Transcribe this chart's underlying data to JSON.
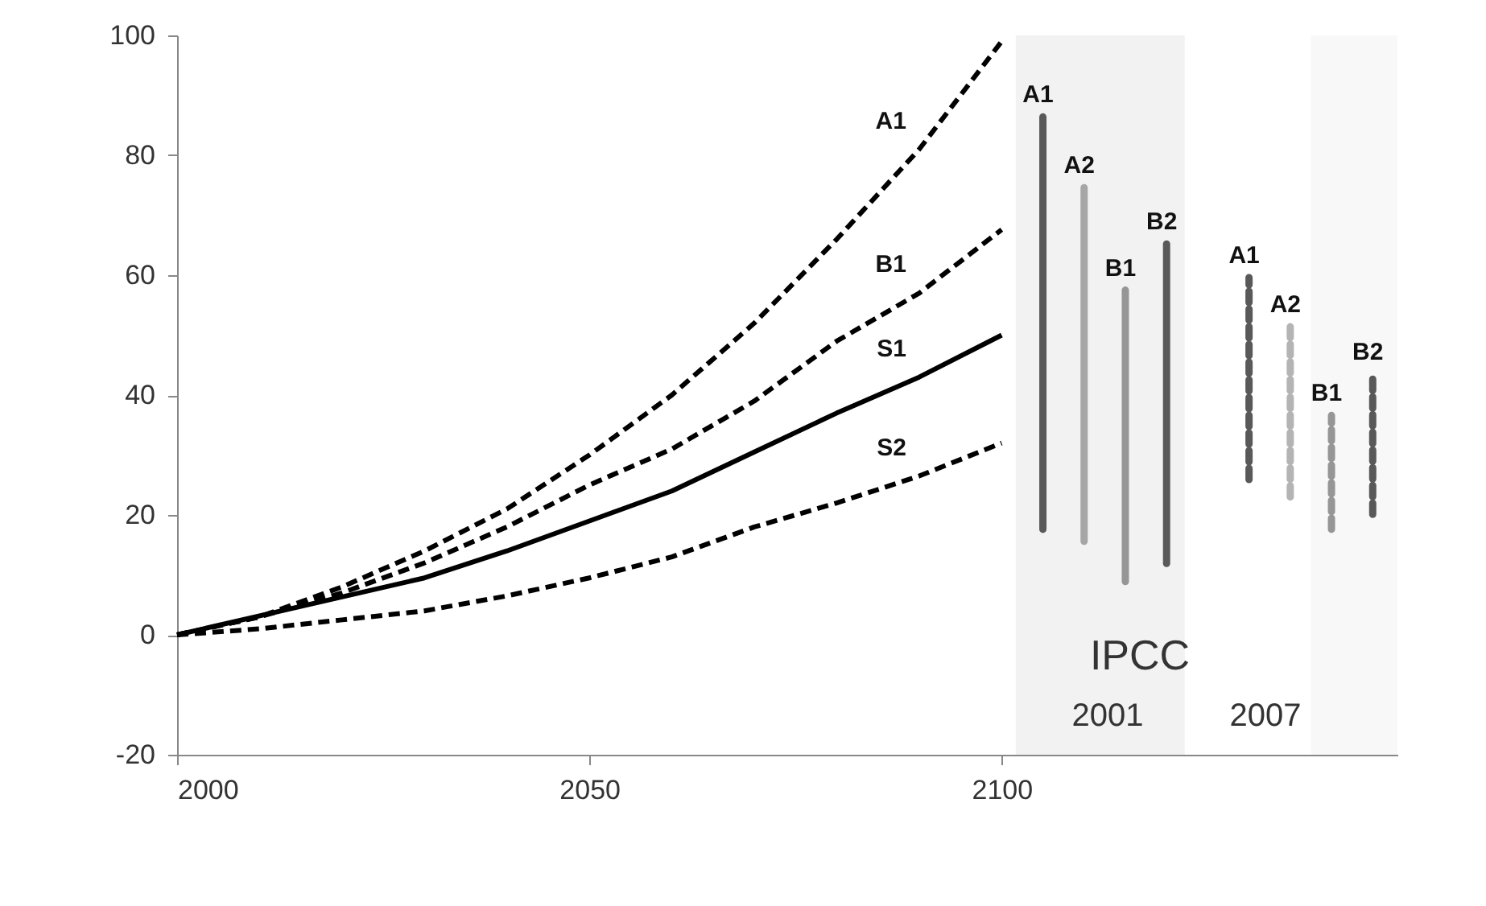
{
  "chart_data": {
    "type": "line",
    "xlim": [
      2000,
      2148
    ],
    "xticks": [
      2000,
      2050,
      2100
    ],
    "ylim": [
      -20,
      100
    ],
    "yticks": [
      -20,
      0,
      20,
      40,
      60,
      80,
      100
    ],
    "grid": false,
    "bands": [
      {
        "axis": "x",
        "from": 2101.7,
        "to": 2122.2,
        "color": "#f2f2f2"
      },
      {
        "axis": "x",
        "from": 2137.5,
        "to": 2148,
        "color": "#f8f8f8"
      }
    ],
    "annotations": [
      "IPCC",
      "2001",
      "2007"
    ],
    "series": [
      {
        "name": "A1",
        "color": "#000000",
        "line_style": "dashed",
        "x": [
          2000,
          2010,
          2020,
          2030,
          2040,
          2050,
          2060,
          2070,
          2080,
          2090,
          2100
        ],
        "values": [
          0,
          3,
          8,
          14,
          21,
          30,
          40,
          52,
          66,
          81,
          99
        ]
      },
      {
        "name": "B1",
        "color": "#000000",
        "line_style": "dashed",
        "x": [
          2000,
          2010,
          2020,
          2030,
          2040,
          2050,
          2060,
          2070,
          2080,
          2090,
          2100
        ],
        "values": [
          0,
          3,
          7,
          12,
          18,
          25,
          31,
          39,
          49,
          57,
          67.6
        ]
      },
      {
        "name": "S1",
        "color": "#000000",
        "line_style": "solid",
        "x": [
          2000,
          2030,
          2040,
          2050,
          2060,
          2070,
          2080,
          2090,
          2100
        ],
        "values": [
          0,
          9.5,
          14,
          19,
          24,
          30.5,
          37,
          43,
          50
        ]
      },
      {
        "name": "S2",
        "color": "#000000",
        "line_style": "dashed",
        "x": [
          2000,
          2010,
          2020,
          2030,
          2040,
          2050,
          2060,
          2070,
          2080,
          2090,
          2100
        ],
        "values": [
          0,
          1,
          2.5,
          4,
          6.5,
          9.5,
          13,
          18,
          22,
          26.5,
          32
        ]
      },
      {
        "name": "A1",
        "color": "#595959",
        "line_style": "solid",
        "x": [
          2105,
          2105
        ],
        "values": [
          17.6,
          86.4
        ]
      },
      {
        "name": "A2",
        "color": "#a6a6a6",
        "line_style": "solid",
        "x": [
          2110,
          2110
        ],
        "values": [
          15.6,
          74.6
        ]
      },
      {
        "name": "B1",
        "color": "#969696",
        "line_style": "solid",
        "x": [
          2115,
          2115
        ],
        "values": [
          8.9,
          57.5
        ]
      },
      {
        "name": "B2",
        "color": "#595959",
        "line_style": "solid",
        "x": [
          2120,
          2120
        ],
        "values": [
          11.9,
          65.2
        ]
      },
      {
        "name": "A1",
        "color": "#595959",
        "line_style": "dashed",
        "x": [
          2130,
          2130
        ],
        "values": [
          25.9,
          59.6
        ]
      },
      {
        "name": "A2",
        "color": "#b4b4b4",
        "line_style": "dashed",
        "x": [
          2135,
          2135
        ],
        "values": [
          23.0,
          51.4
        ]
      },
      {
        "name": "B1",
        "color": "#969696",
        "line_style": "dashed",
        "x": [
          2140,
          2140
        ],
        "values": [
          17.6,
          36.6
        ]
      },
      {
        "name": "B2",
        "color": "#595959",
        "line_style": "dashed",
        "x": [
          2145,
          2145
        ],
        "values": [
          20.1,
          43.5
        ]
      }
    ]
  }
}
